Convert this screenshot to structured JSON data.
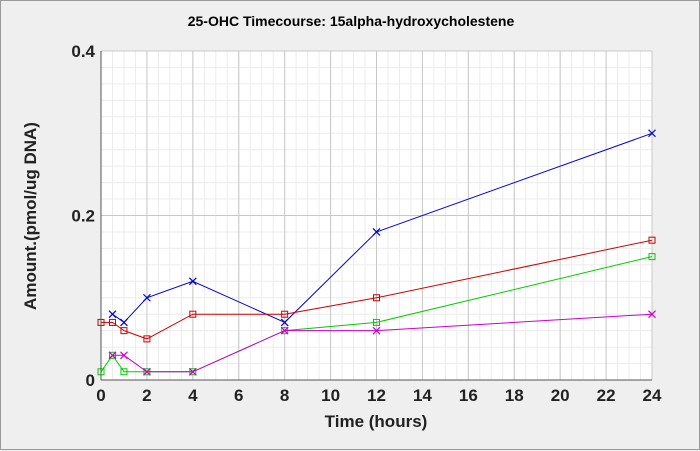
{
  "chart_data": {
    "type": "line",
    "title": "25-OHC Timecourse: 15alpha-hydroxycholestene",
    "xlabel": "Time (hours)",
    "ylabel": "Amount.(pmol/ug DNA)",
    "xlim": [
      0,
      24
    ],
    "ylim": [
      0,
      0.4
    ],
    "xticks": [
      0,
      2,
      4,
      6,
      8,
      10,
      12,
      14,
      16,
      18,
      20,
      22,
      24
    ],
    "yticks": [
      0,
      0.2,
      0.4
    ],
    "ytick_labels": [
      "0",
      "0.2",
      "0.4"
    ],
    "grid": true,
    "series": [
      {
        "name": "blue-cross",
        "color": "#0000cc",
        "marker": "x",
        "x": [
          0.5,
          1,
          2,
          4,
          8,
          12,
          24
        ],
        "y": [
          0.08,
          0.07,
          0.1,
          0.12,
          0.07,
          0.18,
          0.3
        ]
      },
      {
        "name": "red-square",
        "color": "#cc0000",
        "marker": "square",
        "x": [
          0,
          0.5,
          1,
          2,
          4,
          8,
          12,
          24
        ],
        "y": [
          0.07,
          0.07,
          0.06,
          0.05,
          0.08,
          0.08,
          0.1,
          0.17
        ]
      },
      {
        "name": "green-square",
        "color": "#00cc00",
        "marker": "square",
        "x": [
          0,
          0.5,
          1,
          2,
          4,
          8,
          12,
          24
        ],
        "y": [
          0.01,
          0.03,
          0.01,
          0.01,
          0.01,
          0.06,
          0.07,
          0.15
        ]
      },
      {
        "name": "magenta-cross",
        "color": "#cc00cc",
        "marker": "x",
        "x": [
          0.5,
          1,
          2,
          4,
          8,
          12,
          24
        ],
        "y": [
          0.03,
          0.03,
          0.01,
          0.01,
          0.06,
          0.06,
          0.08
        ]
      }
    ]
  }
}
